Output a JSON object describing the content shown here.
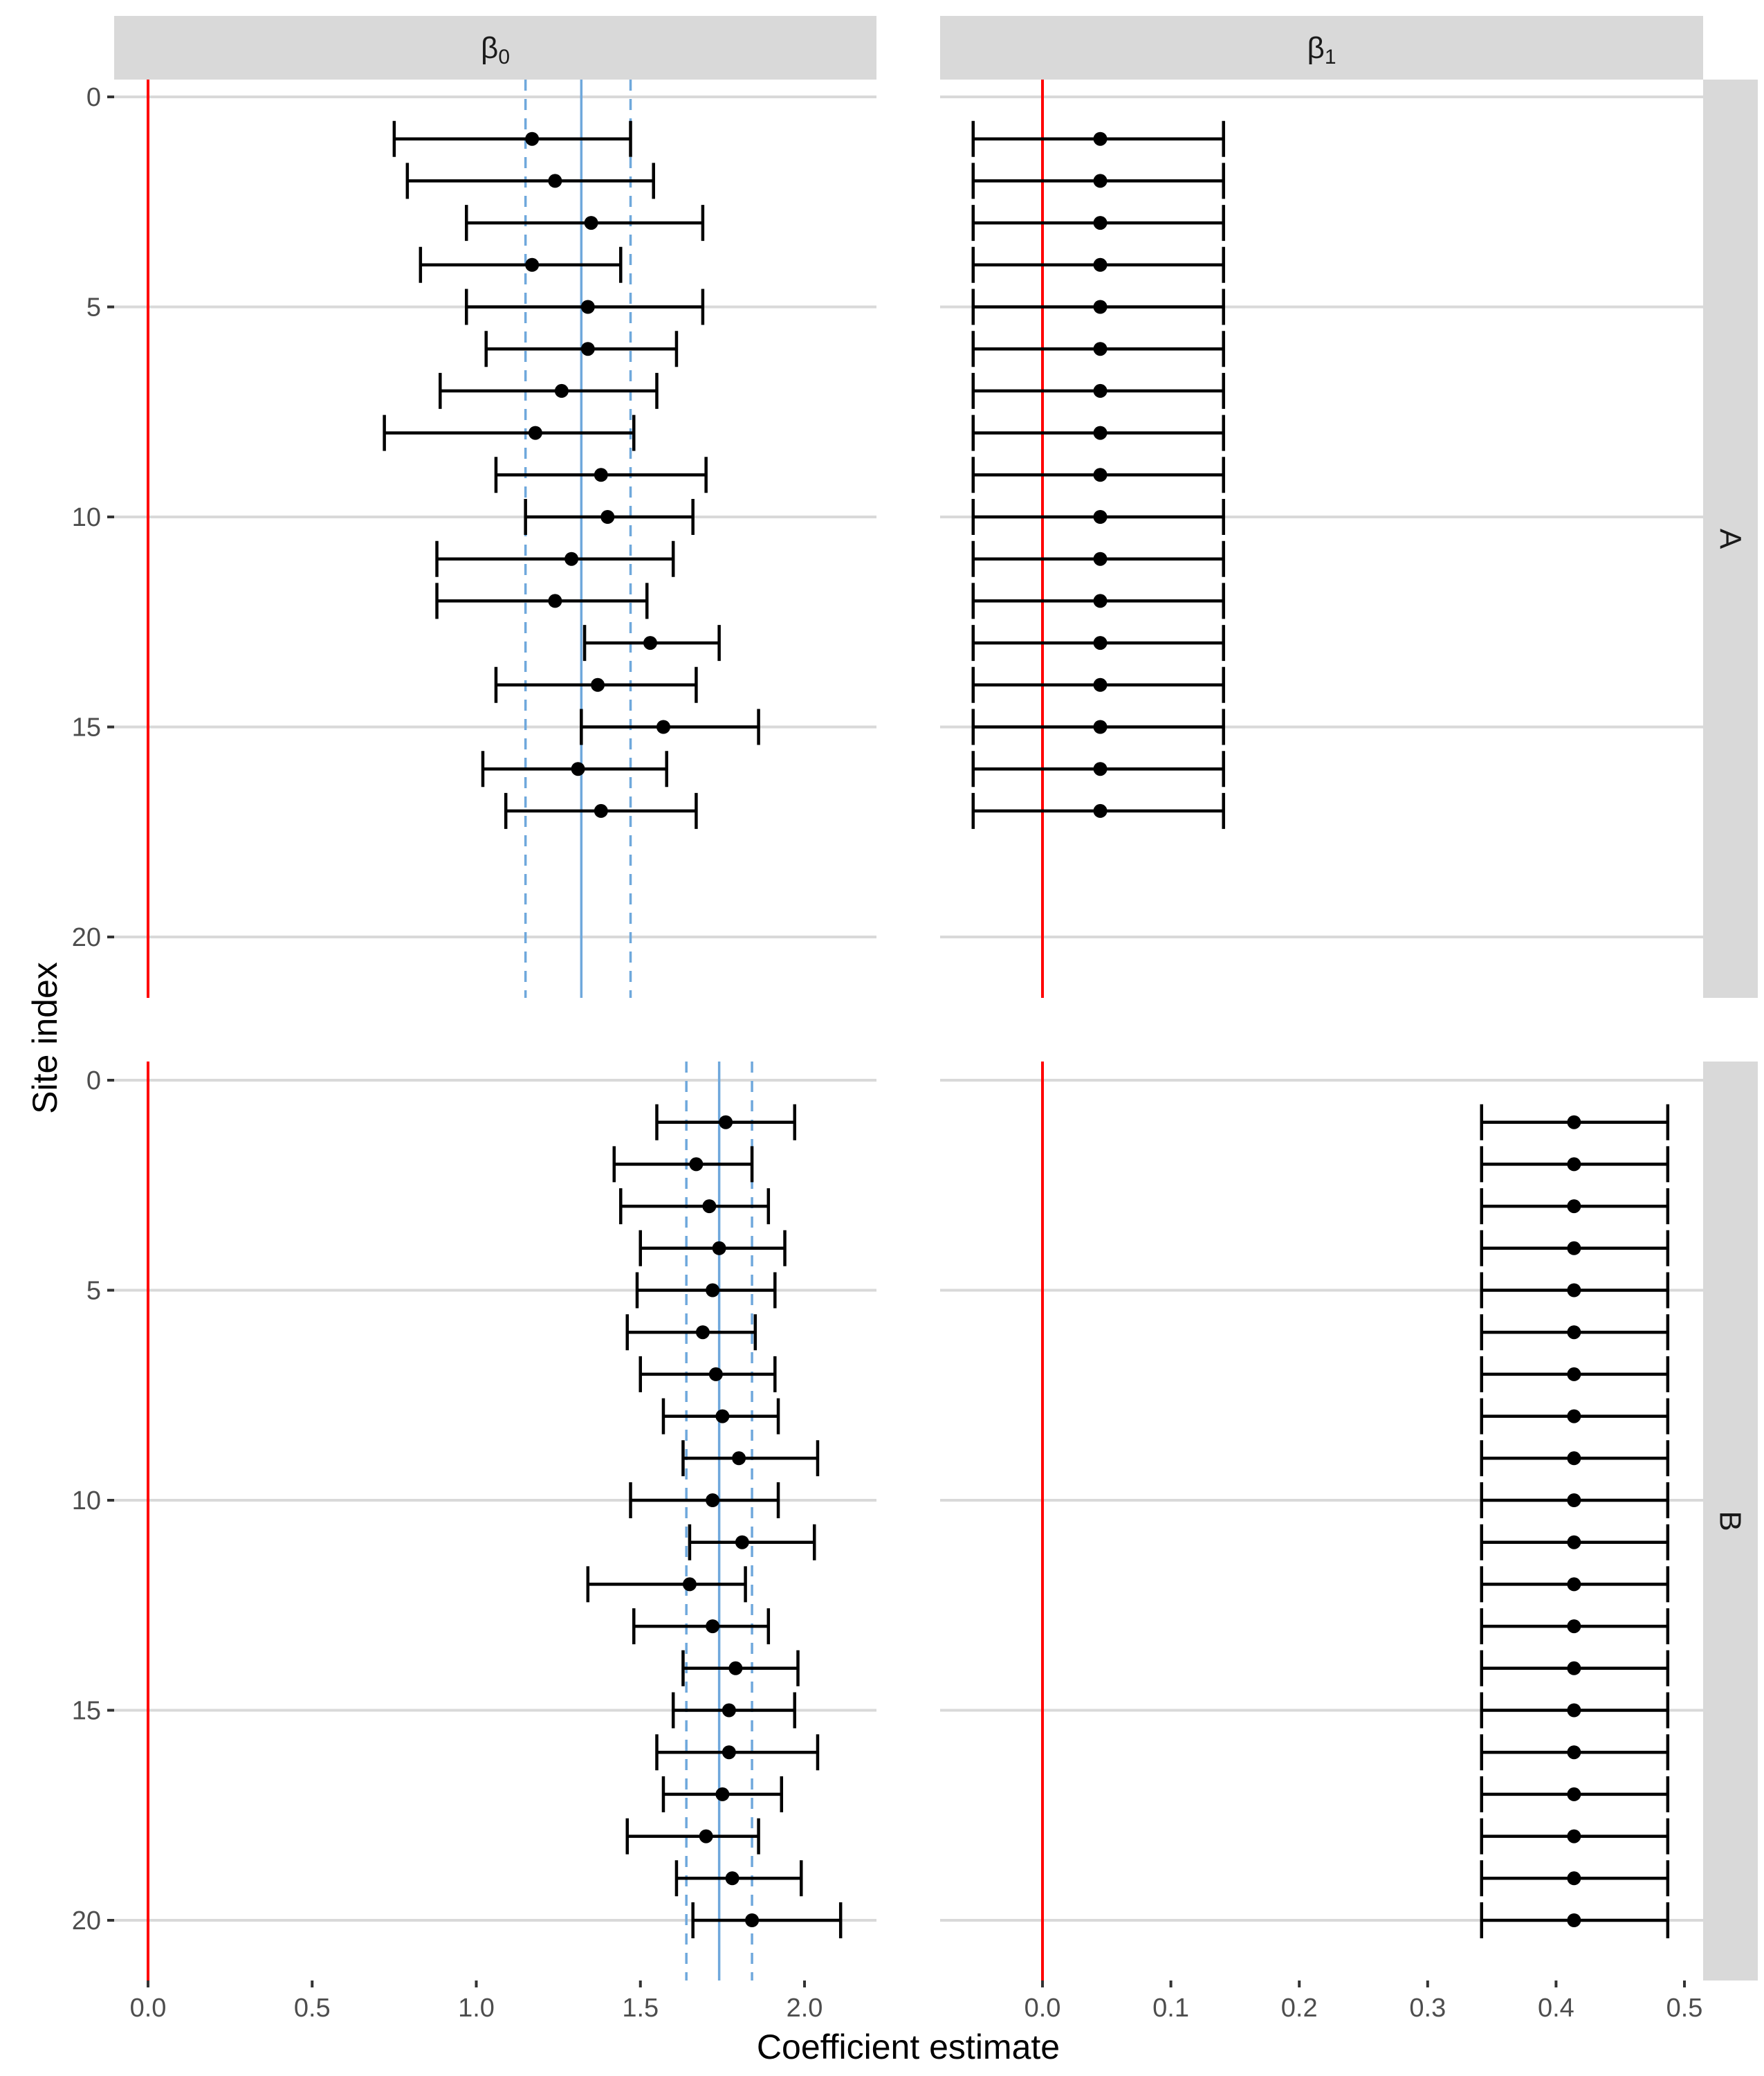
{
  "chart_data": {
    "type": "forest",
    "xlabel": "Coefficient estimate",
    "ylabel": "Site index",
    "columns": [
      {
        "label": "β",
        "subscript": "0",
        "xlim": [
          -0.1,
          2.22
        ],
        "xticks": [
          0.0,
          0.5,
          1.0,
          1.5,
          2.0
        ],
        "xtick_labels": [
          "0.0",
          "0.5",
          "1.0",
          "1.5",
          "2.0"
        ]
      },
      {
        "label": "β",
        "subscript": "1",
        "xlim": [
          -0.075,
          0.52
        ],
        "xticks": [
          0.0,
          0.1,
          0.2,
          0.3,
          0.4,
          0.5
        ],
        "xtick_labels": [
          "0.0",
          "0.1",
          "0.2",
          "0.3",
          "0.4",
          "0.5"
        ]
      }
    ],
    "rows": [
      {
        "label": "A",
        "ylim": [
          -0.5,
          21.5
        ],
        "yticks": [
          0,
          5,
          10,
          15,
          20
        ],
        "ytick_labels": [
          "0",
          "5",
          "10",
          "15",
          "20"
        ]
      },
      {
        "label": "B",
        "ylim": [
          -0.5,
          21.5
        ],
        "yticks": [
          0,
          5,
          10,
          15,
          20
        ],
        "ytick_labels": [
          "0",
          "5",
          "10",
          "15",
          "20"
        ]
      }
    ],
    "reference_line": {
      "x": 0,
      "color": "#ff0000"
    },
    "mean_line_color": "#6fa8dc",
    "point_color": "#000000",
    "panels": [
      {
        "row": "A",
        "column": "β0",
        "mean": 1.32,
        "mean_ci": [
          1.15,
          1.47
        ],
        "site": [
          1,
          2,
          3,
          4,
          5,
          6,
          7,
          8,
          9,
          10,
          11,
          12,
          13,
          14,
          15,
          16,
          17
        ],
        "estimate": [
          1.17,
          1.24,
          1.35,
          1.17,
          1.34,
          1.34,
          1.26,
          1.18,
          1.38,
          1.4,
          1.29,
          1.24,
          1.53,
          1.37,
          1.57,
          1.31,
          1.38
        ],
        "lower": [
          0.75,
          0.79,
          0.97,
          0.83,
          0.97,
          1.03,
          0.89,
          0.72,
          1.06,
          1.15,
          0.88,
          0.88,
          1.33,
          1.06,
          1.32,
          1.02,
          1.09
        ],
        "upper": [
          1.47,
          1.54,
          1.69,
          1.44,
          1.69,
          1.61,
          1.55,
          1.48,
          1.7,
          1.66,
          1.6,
          1.52,
          1.74,
          1.67,
          1.86,
          1.58,
          1.67
        ]
      },
      {
        "row": "A",
        "column": "β1",
        "site": [
          1,
          2,
          3,
          4,
          5,
          6,
          7,
          8,
          9,
          10,
          11,
          12,
          13,
          14,
          15,
          16,
          17
        ],
        "estimate": [
          0.045,
          0.045,
          0.045,
          0.045,
          0.045,
          0.045,
          0.045,
          0.045,
          0.045,
          0.045,
          0.045,
          0.045,
          0.045,
          0.045,
          0.045,
          0.045,
          0.045
        ],
        "lower": [
          -0.054,
          -0.054,
          -0.054,
          -0.054,
          -0.054,
          -0.054,
          -0.054,
          -0.054,
          -0.054,
          -0.054,
          -0.054,
          -0.054,
          -0.054,
          -0.054,
          -0.054,
          -0.054,
          -0.054
        ],
        "upper": [
          0.141,
          0.141,
          0.141,
          0.141,
          0.141,
          0.141,
          0.141,
          0.141,
          0.141,
          0.141,
          0.141,
          0.141,
          0.141,
          0.141,
          0.141,
          0.141,
          0.141
        ]
      },
      {
        "row": "B",
        "column": "β0",
        "mean": 1.74,
        "mean_ci": [
          1.64,
          1.84
        ],
        "site": [
          1,
          2,
          3,
          4,
          5,
          6,
          7,
          8,
          9,
          10,
          11,
          12,
          13,
          14,
          15,
          16,
          17,
          18,
          19,
          20
        ],
        "estimate": [
          1.76,
          1.67,
          1.71,
          1.74,
          1.72,
          1.69,
          1.73,
          1.75,
          1.8,
          1.72,
          1.81,
          1.65,
          1.72,
          1.79,
          1.77,
          1.77,
          1.75,
          1.7,
          1.78,
          1.84
        ],
        "lower": [
          1.55,
          1.42,
          1.44,
          1.5,
          1.49,
          1.46,
          1.5,
          1.57,
          1.63,
          1.47,
          1.65,
          1.34,
          1.48,
          1.63,
          1.6,
          1.55,
          1.57,
          1.46,
          1.61,
          1.66
        ],
        "upper": [
          1.97,
          1.84,
          1.89,
          1.94,
          1.91,
          1.85,
          1.91,
          1.92,
          2.04,
          1.92,
          2.03,
          1.82,
          1.89,
          1.98,
          1.97,
          2.04,
          1.93,
          1.86,
          1.99,
          2.11
        ]
      },
      {
        "row": "B",
        "column": "β1",
        "site": [
          1,
          2,
          3,
          4,
          5,
          6,
          7,
          8,
          9,
          10,
          11,
          12,
          13,
          14,
          15,
          16,
          17,
          18,
          19,
          20
        ],
        "estimate": [
          0.414,
          0.414,
          0.414,
          0.414,
          0.414,
          0.414,
          0.414,
          0.414,
          0.414,
          0.414,
          0.414,
          0.414,
          0.414,
          0.414,
          0.414,
          0.414,
          0.414,
          0.414,
          0.414,
          0.414
        ],
        "lower": [
          0.342,
          0.342,
          0.342,
          0.342,
          0.342,
          0.342,
          0.342,
          0.342,
          0.342,
          0.342,
          0.342,
          0.342,
          0.342,
          0.342,
          0.342,
          0.342,
          0.342,
          0.342,
          0.342,
          0.342
        ],
        "upper": [
          0.487,
          0.487,
          0.487,
          0.487,
          0.487,
          0.487,
          0.487,
          0.487,
          0.487,
          0.487,
          0.487,
          0.487,
          0.487,
          0.487,
          0.487,
          0.487,
          0.487,
          0.487,
          0.487,
          0.487
        ]
      }
    ]
  }
}
